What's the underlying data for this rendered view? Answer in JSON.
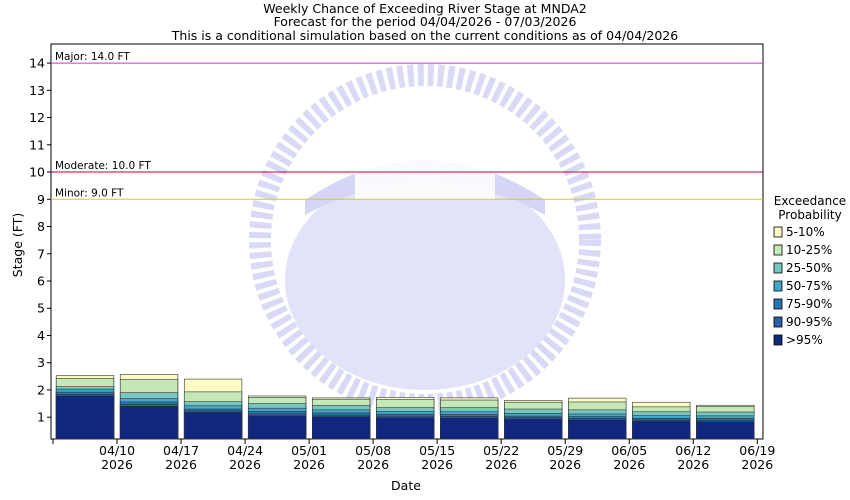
{
  "chart_data": {
    "type": "bar",
    "title_lines": [
      "Weekly Chance of Exceeding River Stage at MNDA2",
      "Forecast for the period 04/04/2026 - 07/03/2026",
      "This is a conditional simulation based on the current conditions as of 04/04/2026"
    ],
    "xlabel": "Date",
    "ylabel": "Stage (FT)",
    "ylim": [
      0.2,
      14.7
    ],
    "yticks": [
      1,
      2,
      3,
      4,
      5,
      6,
      7,
      8,
      9,
      10,
      11,
      12,
      13,
      14
    ],
    "xtick_labels": [
      {
        "line1": "04/10",
        "line2": "2026"
      },
      {
        "line1": "04/17",
        "line2": "2026"
      },
      {
        "line1": "04/24",
        "line2": "2026"
      },
      {
        "line1": "05/01",
        "line2": "2026"
      },
      {
        "line1": "05/08",
        "line2": "2026"
      },
      {
        "line1": "05/15",
        "line2": "2026"
      },
      {
        "line1": "05/22",
        "line2": "2026"
      },
      {
        "line1": "05/29",
        "line2": "2026"
      },
      {
        "line1": "06/05",
        "line2": "2026"
      },
      {
        "line1": "06/12",
        "line2": "2026"
      },
      {
        "line1": "06/19",
        "line2": "2026"
      }
    ],
    "flood_levels": [
      {
        "label": "Major: 14.0 FT",
        "value": 14.0,
        "color": "#cc33cc"
      },
      {
        "label": "Moderate: 10.0 FT",
        "value": 10.0,
        "color": "#cc0033"
      },
      {
        "label": "Minor: 9.0 FT",
        "value": 9.0,
        "color": "#cccc33"
      }
    ],
    "legend": {
      "title_lines": [
        "Exceedance",
        "Probability"
      ],
      "placement": "right"
    },
    "series": [
      {
        "name": ">95%",
        "color": "#10267f",
        "values": [
          1.78,
          1.4,
          1.18,
          1.05,
          1.02,
          0.98,
          0.97,
          0.93,
          0.9,
          0.86,
          0.84
        ]
      },
      {
        "name": "90-95%",
        "color": "#2c5fa8",
        "values": [
          1.84,
          1.47,
          1.23,
          1.12,
          1.08,
          1.04,
          1.03,
          0.98,
          0.95,
          0.9,
          0.89
        ]
      },
      {
        "name": "75-90%",
        "color": "#2379b0",
        "values": [
          1.92,
          1.56,
          1.3,
          1.21,
          1.16,
          1.11,
          1.1,
          1.04,
          1.02,
          0.96,
          0.96
        ]
      },
      {
        "name": "50-75%",
        "color": "#3fa9c9",
        "values": [
          2.03,
          1.68,
          1.42,
          1.33,
          1.27,
          1.21,
          1.2,
          1.14,
          1.12,
          1.06,
          1.05
        ]
      },
      {
        "name": "25-50%",
        "color": "#76c7c0",
        "values": [
          2.12,
          1.9,
          1.57,
          1.5,
          1.43,
          1.35,
          1.35,
          1.3,
          1.27,
          1.2,
          1.19
        ]
      },
      {
        "name": "10-25%",
        "color": "#c5e8b7",
        "values": [
          2.42,
          2.38,
          1.93,
          1.73,
          1.66,
          1.65,
          1.63,
          1.55,
          1.56,
          1.38,
          1.39
        ]
      },
      {
        "name": "5-10%",
        "color": "#fbfbc5",
        "values": [
          2.53,
          2.57,
          2.4,
          1.78,
          1.71,
          1.73,
          1.71,
          1.61,
          1.7,
          1.55,
          1.44
        ]
      }
    ]
  }
}
